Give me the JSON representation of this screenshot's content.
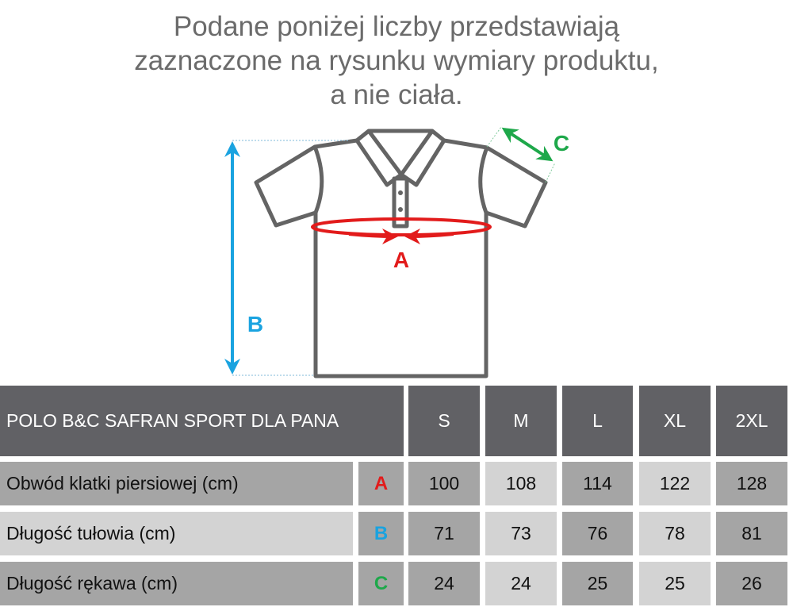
{
  "heading": {
    "lines": [
      "Podane poniżej liczby przedstawiają",
      "zaznaczone na rysunku wymiary produktu,",
      "a nie ciała."
    ]
  },
  "diagram": {
    "labels": {
      "A": "A",
      "B": "B",
      "C": "C"
    },
    "colors": {
      "A": "#e21b1b",
      "B": "#1aa3e0",
      "C": "#1ea84a",
      "outline": "#646464"
    }
  },
  "table": {
    "title": "POLO B&C SAFRAN SPORT DLA PANA",
    "sizes": [
      "S",
      "M",
      "L",
      "XL",
      "2XL"
    ],
    "rows": [
      {
        "label": "Obwód klatki piersiowej (cm)",
        "letter": "A",
        "values": [
          "100",
          "108",
          "114",
          "122",
          "128"
        ]
      },
      {
        "label": "Długość tułowia (cm)",
        "letter": "B",
        "values": [
          "71",
          "73",
          "76",
          "78",
          "81"
        ]
      },
      {
        "label": "Długość rękawa (cm)",
        "letter": "C",
        "values": [
          "24",
          "24",
          "25",
          "25",
          "26"
        ]
      }
    ],
    "colors": {
      "header": "#616165",
      "dark": "#a5a5a5",
      "light": "#d3d3d3"
    }
  }
}
